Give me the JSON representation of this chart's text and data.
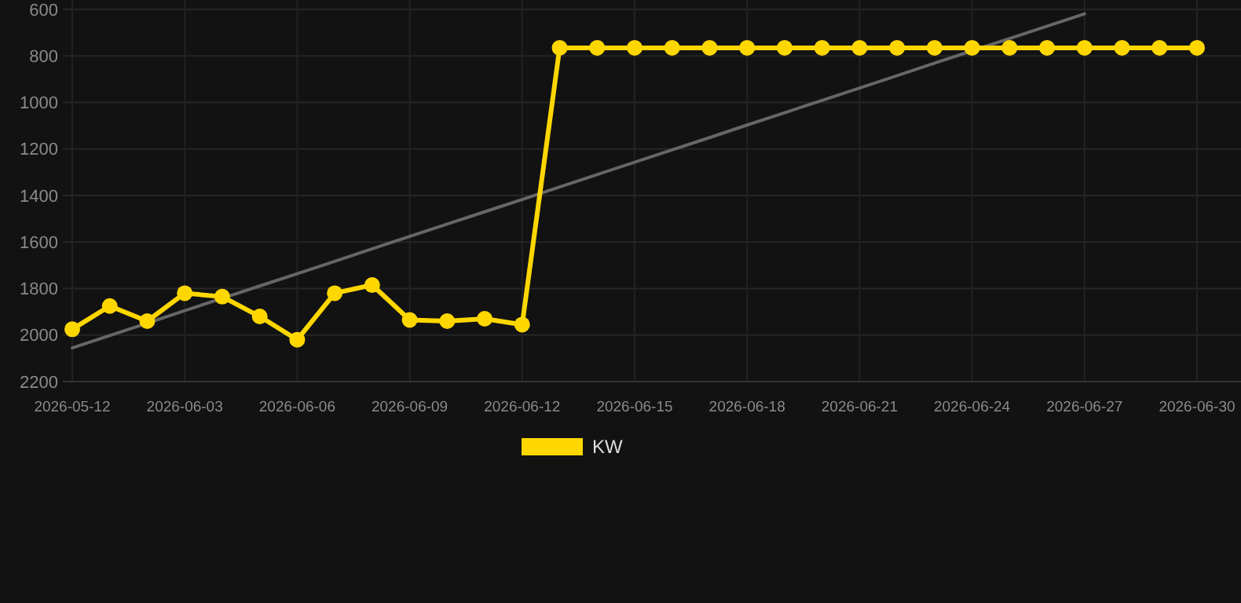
{
  "chart_data": {
    "type": "line",
    "categories": [
      "2026-05-12",
      null,
      null,
      "2026-06-03",
      null,
      null,
      "2026-06-06",
      null,
      null,
      "2026-06-09",
      null,
      null,
      "2026-06-12",
      null,
      null,
      "2026-06-15",
      null,
      null,
      "2026-06-18",
      null,
      null,
      "2026-06-21",
      null,
      null,
      "2026-06-24",
      null,
      null,
      "2026-06-27",
      null,
      null,
      "2026-06-30"
    ],
    "series": [
      {
        "name": "KW",
        "color": "#ffd700",
        "marker": "circle",
        "values": [
          1975,
          1875,
          1940,
          1820,
          1835,
          1920,
          2020,
          1820,
          1785,
          1935,
          1940,
          1930,
          1955,
          765,
          765,
          765,
          765,
          765,
          765,
          765,
          765,
          765,
          765,
          765,
          765,
          765,
          765,
          765,
          765,
          765,
          765
        ]
      },
      {
        "type": "line",
        "color": "#666666",
        "marker": "none",
        "values": [
          2055,
          2002,
          1949,
          1895,
          1842,
          1789,
          1736,
          1683,
          1629,
          1576,
          1523,
          1470,
          1417,
          1363,
          1310,
          1257,
          1204,
          1151,
          1097,
          1044,
          991,
          938,
          885,
          831,
          778,
          725,
          672,
          619,
          null,
          null,
          null
        ]
      }
    ],
    "ylim": [
      2200,
      600
    ],
    "yticks": [
      600,
      800,
      1000,
      1200,
      1400,
      1600,
      1800,
      2000,
      2200
    ],
    "grid": true,
    "legend": "bottom"
  }
}
